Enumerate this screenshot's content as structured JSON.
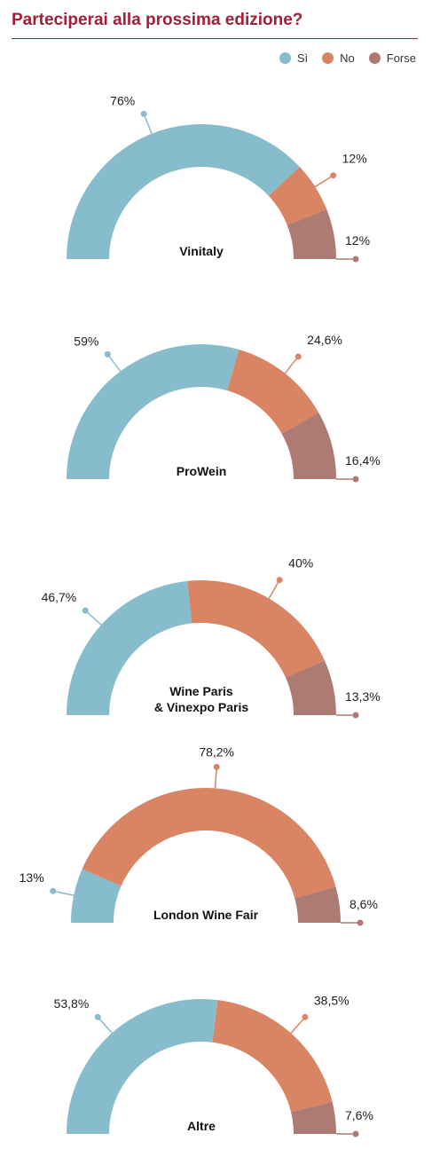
{
  "title": "Parteciperai alla prossima edizione?",
  "legend": [
    {
      "label": "Sì",
      "color": "#86bccb"
    },
    {
      "label": "No",
      "color": "#d98564"
    },
    {
      "label": "Forse",
      "color": "#ae7b74"
    }
  ],
  "chart_data": [
    {
      "type": "pie",
      "variant": "semicircle-donut",
      "title": "Vinitaly",
      "categories": [
        "Sì",
        "No",
        "Forse"
      ],
      "values": [
        76,
        12,
        12
      ],
      "labels": [
        "76%",
        "12%",
        "12%"
      ]
    },
    {
      "type": "pie",
      "variant": "semicircle-donut",
      "title": "ProWein",
      "categories": [
        "Sì",
        "No",
        "Forse"
      ],
      "values": [
        59,
        24.6,
        16.4
      ],
      "labels": [
        "59%",
        "24,6%",
        "16,4%"
      ]
    },
    {
      "type": "pie",
      "variant": "semicircle-donut",
      "title": "Wine Paris\n& Vinexpo Paris",
      "categories": [
        "Sì",
        "No",
        "Forse"
      ],
      "values": [
        46.7,
        40,
        13.3
      ],
      "labels": [
        "46,7%",
        "40%",
        "13,3%"
      ]
    },
    {
      "type": "pie",
      "variant": "semicircle-donut",
      "title": "London Wine Fair",
      "categories": [
        "Sì",
        "No",
        "Forse"
      ],
      "values": [
        13,
        78.2,
        8.6
      ],
      "labels": [
        "13%",
        "78,2%",
        "8,6%"
      ]
    },
    {
      "type": "pie",
      "variant": "semicircle-donut",
      "title": "Altre",
      "categories": [
        "Sì",
        "No",
        "Forse"
      ],
      "values": [
        53.8,
        38.5,
        7.6
      ],
      "labels": [
        "53,8%",
        "38,5%",
        "7,6%"
      ]
    }
  ]
}
